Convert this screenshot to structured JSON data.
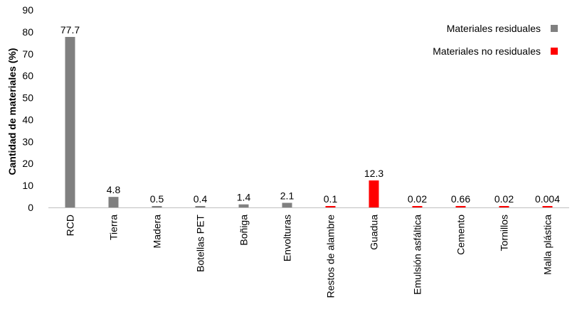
{
  "chart_data": {
    "type": "bar",
    "categories": [
      "RCD",
      "Tierra",
      "Madera",
      "Botellas PET",
      "Boñiga",
      "Envolturas",
      "Restos de alambre",
      "Guadua",
      "Emulsión asfáltica",
      "Cemento",
      "Tornillos",
      "Malla plástica"
    ],
    "values": [
      77.7,
      4.8,
      0.5,
      0.4,
      1.4,
      2.1,
      0.1,
      12.3,
      0.02,
      0.66,
      0.02,
      0.004
    ],
    "value_labels": [
      "77.7",
      "4.8",
      "0.5",
      "0.4",
      "1.4",
      "2.1",
      "0.1",
      "12.3",
      "0.02",
      "0.66",
      "0.02",
      "0.004"
    ],
    "groups": [
      "residual",
      "residual",
      "residual",
      "residual",
      "residual",
      "residual",
      "no_residual",
      "no_residual",
      "no_residual",
      "no_residual",
      "no_residual",
      "no_residual"
    ],
    "legend": [
      {
        "key": "residual",
        "label": "Materiales residuales",
        "color": "#808080"
      },
      {
        "key": "no_residual",
        "label": "Materiales no residuales",
        "color": "#ff0000"
      }
    ],
    "legend_position": "top-right",
    "ylabel": "Cantidad de materiales (%)",
    "xlabel": "",
    "ylim": [
      0,
      90
    ],
    "yticks": [
      0,
      10,
      20,
      30,
      40,
      50,
      60,
      70,
      80,
      90
    ],
    "grid": false
  }
}
